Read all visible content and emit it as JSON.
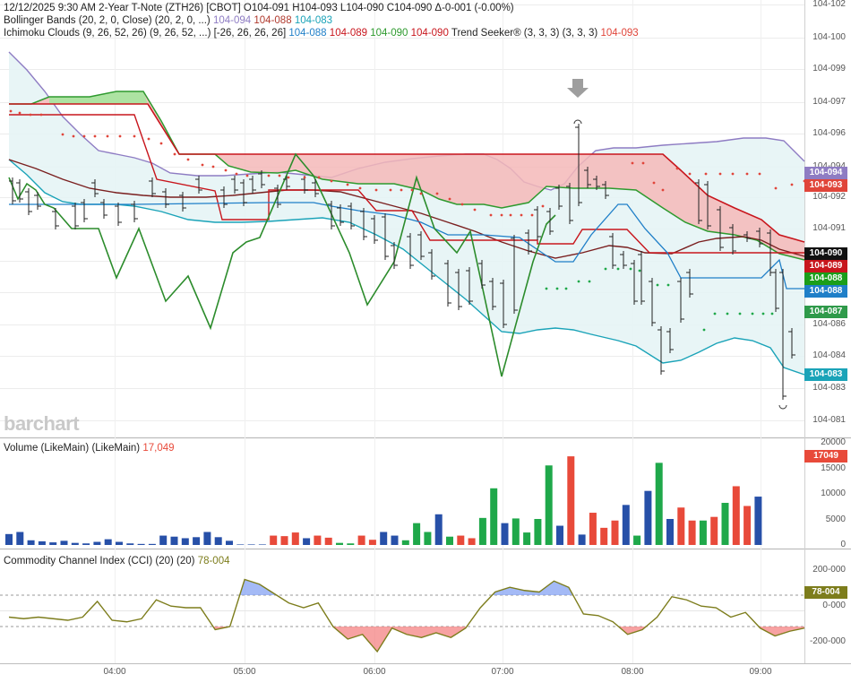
{
  "header": {
    "date": "12/12/2025",
    "time": "9:30 AM",
    "instrument": "2-Year T-Note (ZTH26) [CBOT]",
    "ohlc": "O104-091 H104-093 L104-090 C104-090 Δ-0-001 (-0.00%)",
    "bollinger_label": "Bollinger Bands (20, 2, 0, Close)",
    "bollinger_params": "(20, 2, 0, ...)",
    "bollinger_values": [
      "104-094",
      "104-088",
      "104-083"
    ],
    "ichimoku_label": "Ichimoku Clouds (9, 26, 52, 26)",
    "ichimoku_params": "(9, 26, 52, ...) [-26, 26, 26, 26]",
    "ichimoku_values": [
      "104-088",
      "104-089",
      "104-090",
      "104-090"
    ],
    "trend_label": "Trend Seeker® (3, 3, 3)",
    "trend_params": "(3, 3, 3)",
    "trend_value": "104-093"
  },
  "logo_text": "barchart",
  "colors": {
    "bollinger": "#8e7cc3",
    "bollinger_mid": "#b03a2e",
    "bollinger_low": "#1aa3b8",
    "bollinger_fill": "#e6f4f5",
    "cloud_green": "#2e9a2e",
    "cloud_red": "#c8161d",
    "cloud_fill_red": "#f4b9b9",
    "cloud_fill_green": "#a9e5a0",
    "kijun": "#7a1f1f",
    "tenkan": "#1f7fc8",
    "lagging": "#2c8c2c",
    "trend_dots": "#e0453a",
    "volume_up": "#1fa84a",
    "volume_down": "#e84a3a",
    "volume_neutral": "#2750a8",
    "cci_line": "#7d7d1c",
    "cci_up_fill": "#7e9df2",
    "cci_down_fill": "#f37b7b"
  },
  "price_axis": {
    "ticks": [
      "104-102",
      "104-100",
      "104-099",
      "104-097",
      "104-096",
      "104-094",
      "104-092",
      "104-091",
      "104-089",
      "104-088",
      "104-086",
      "104-084",
      "104-083",
      "104-081"
    ]
  },
  "price_tags": [
    {
      "label": "104-094",
      "color": "#8e7cc3"
    },
    {
      "label": "104-093",
      "color": "#e0453a"
    },
    {
      "label": "104-090",
      "color": "#111111"
    },
    {
      "label": "104-089",
      "color": "#c8161d"
    },
    {
      "label": "104-088",
      "color": "#1a9e1a"
    },
    {
      "label": "104-088",
      "color": "#1f7fc8"
    },
    {
      "label": "104-087",
      "color": "#2f9a4a"
    },
    {
      "label": "104-083",
      "color": "#1aa3b8"
    }
  ],
  "volume": {
    "title": "Volume (LikeMain)",
    "params": "(LikeMain)",
    "value": "17,049",
    "tag": "17049",
    "ticks": [
      "20000",
      "15000",
      "10000",
      "5000",
      "0"
    ]
  },
  "cci": {
    "title": "Commodity Channel Index (CCI) (20)",
    "params": "(20)",
    "value": "78-004",
    "tag": "78-004",
    "ticks": [
      "200-000",
      "0-000",
      "-200-000"
    ]
  },
  "x_axis": {
    "ticks": [
      "04:00",
      "05:00",
      "06:00",
      "07:00",
      "08:00",
      "09:00"
    ]
  },
  "chart_data": [
    {
      "type": "line",
      "title": "2-Year T-Note (ZTH26) [CBOT]",
      "ylim": [
        104.081,
        104.102
      ],
      "x_time_labels": [
        "04:00",
        "05:00",
        "06:00",
        "07:00",
        "08:00",
        "09:00"
      ],
      "series": [
        {
          "name": "Bollinger Bands",
          "values": [
            104.0985,
            104.0965,
            104.0945,
            104.0935,
            104.0935,
            104.094,
            104.0945,
            104.095,
            104.0955,
            104.0955,
            104.0955,
            104.095,
            104.095,
            104.095,
            104.0955,
            104.096,
            104.096,
            104.096,
            104.096,
            104.0955
          ]
        },
        {
          "name": "Trend Seeker®",
          "values": [
            104.0962,
            104.0955,
            104.0948,
            104.0945,
            104.0935,
            104.0928,
            104.0925,
            104.0925,
            104.092,
            104.0915,
            104.091,
            104.091,
            104.088,
            104.0885,
            104.0895,
            104.0935,
            104.093,
            104.0925,
            104.092,
            104.087
          ]
        }
      ]
    },
    {
      "type": "bar",
      "title": "Volume (LikeMain)",
      "ylim": [
        0,
        20000
      ],
      "values": [
        2100,
        2500,
        900,
        700,
        500,
        800,
        400,
        300,
        600,
        1100,
        600,
        300,
        200,
        200,
        1800,
        1600,
        1300,
        1500,
        2500,
        1500,
        800,
        100,
        100,
        100,
        1800,
        1700,
        2400,
        1300,
        1800,
        1400,
        400,
        300,
        1800,
        1000,
        2500,
        1800,
        900,
        4200,
        2500,
        5900,
        1600,
        1800,
        1300,
        5200,
        10900,
        4200,
        5100,
        2400,
        5000,
        15300,
        3700,
        17049,
        2000,
        6200,
        3300,
        4700,
        7700,
        1800,
        10400,
        15800,
        5000,
        7200,
        4700,
        4700,
        5400,
        8100,
        11300,
        7500,
        9300
      ]
    },
    {
      "type": "line",
      "title": "Commodity Channel Index (CCI) (20)",
      "ylim": [
        -300,
        260
      ],
      "values": [
        -40,
        -50,
        -40,
        -50,
        -60,
        -40,
        60,
        -60,
        -70,
        -50,
        70,
        30,
        20,
        20,
        -120,
        -100,
        200,
        170,
        110,
        50,
        20,
        50,
        -100,
        -180,
        -150,
        -260,
        -110,
        -150,
        -170,
        -140,
        -170,
        -110,
        20,
        120,
        150,
        130,
        120,
        190,
        150,
        -20,
        -30,
        -70,
        -150,
        -120,
        -40,
        90,
        70,
        30,
        20,
        -40,
        -10,
        -110,
        -160,
        -130,
        -110
      ]
    }
  ]
}
